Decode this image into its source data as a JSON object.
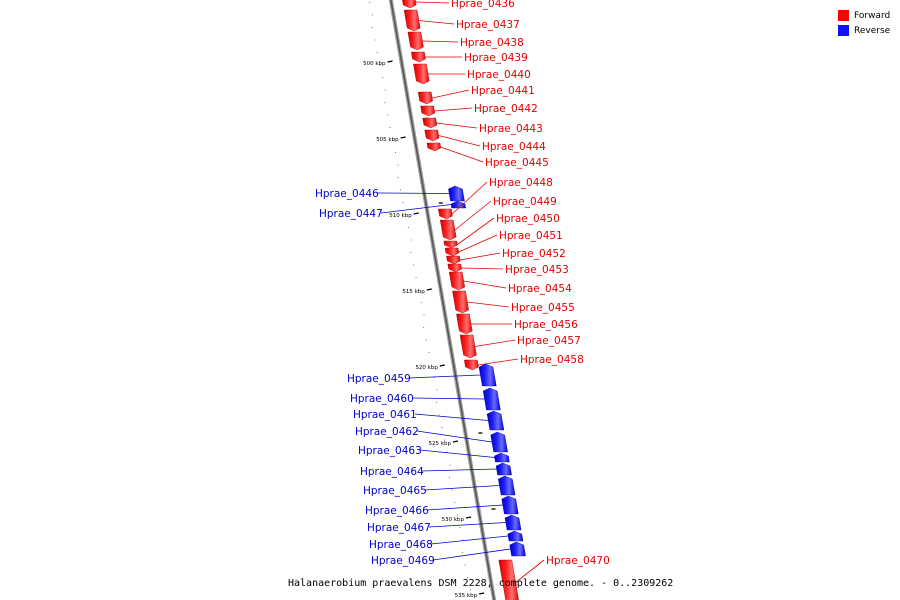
{
  "legend": {
    "forward_label": "Forward",
    "forward_color": "#ff0000",
    "reverse_label": "Reverse",
    "reverse_color": "#1010ff"
  },
  "caption": {
    "organism": "Halanaerobium praevalens DSM 2228, complete genome.",
    "range": "- 0..2309262"
  },
  "scale_ticks": [
    "500 kbp",
    "505 kbp",
    "510 kbp",
    "515 kbp",
    "520 kbp",
    "525 kbp",
    "530 kbp",
    "535 kbp"
  ],
  "genes": [
    {
      "name": "Hprae_0436",
      "strand": "forward"
    },
    {
      "name": "Hprae_0437",
      "strand": "forward"
    },
    {
      "name": "Hprae_0438",
      "strand": "forward"
    },
    {
      "name": "Hprae_0439",
      "strand": "forward"
    },
    {
      "name": "Hprae_0440",
      "strand": "forward"
    },
    {
      "name": "Hprae_0441",
      "strand": "forward"
    },
    {
      "name": "Hprae_0442",
      "strand": "forward"
    },
    {
      "name": "Hprae_0443",
      "strand": "forward"
    },
    {
      "name": "Hprae_0444",
      "strand": "forward"
    },
    {
      "name": "Hprae_0445",
      "strand": "forward"
    },
    {
      "name": "Hprae_0446",
      "strand": "reverse"
    },
    {
      "name": "Hprae_0447",
      "strand": "reverse"
    },
    {
      "name": "Hprae_0448",
      "strand": "forward"
    },
    {
      "name": "Hprae_0449",
      "strand": "forward"
    },
    {
      "name": "Hprae_0450",
      "strand": "forward"
    },
    {
      "name": "Hprae_0451",
      "strand": "forward"
    },
    {
      "name": "Hprae_0452",
      "strand": "forward"
    },
    {
      "name": "Hprae_0453",
      "strand": "forward"
    },
    {
      "name": "Hprae_0454",
      "strand": "forward"
    },
    {
      "name": "Hprae_0455",
      "strand": "forward"
    },
    {
      "name": "Hprae_0456",
      "strand": "forward"
    },
    {
      "name": "Hprae_0457",
      "strand": "forward"
    },
    {
      "name": "Hprae_0458",
      "strand": "forward"
    },
    {
      "name": "Hprae_0459",
      "strand": "reverse"
    },
    {
      "name": "Hprae_0460",
      "strand": "reverse"
    },
    {
      "name": "Hprae_0461",
      "strand": "reverse"
    },
    {
      "name": "Hprae_0462",
      "strand": "reverse"
    },
    {
      "name": "Hprae_0463",
      "strand": "reverse"
    },
    {
      "name": "Hprae_0464",
      "strand": "reverse"
    },
    {
      "name": "Hprae_0465",
      "strand": "reverse"
    },
    {
      "name": "Hprae_0466",
      "strand": "reverse"
    },
    {
      "name": "Hprae_0467",
      "strand": "reverse"
    },
    {
      "name": "Hprae_0468",
      "strand": "reverse"
    },
    {
      "name": "Hprae_0469",
      "strand": "reverse"
    },
    {
      "name": "Hprae_0470",
      "strand": "forward"
    }
  ]
}
